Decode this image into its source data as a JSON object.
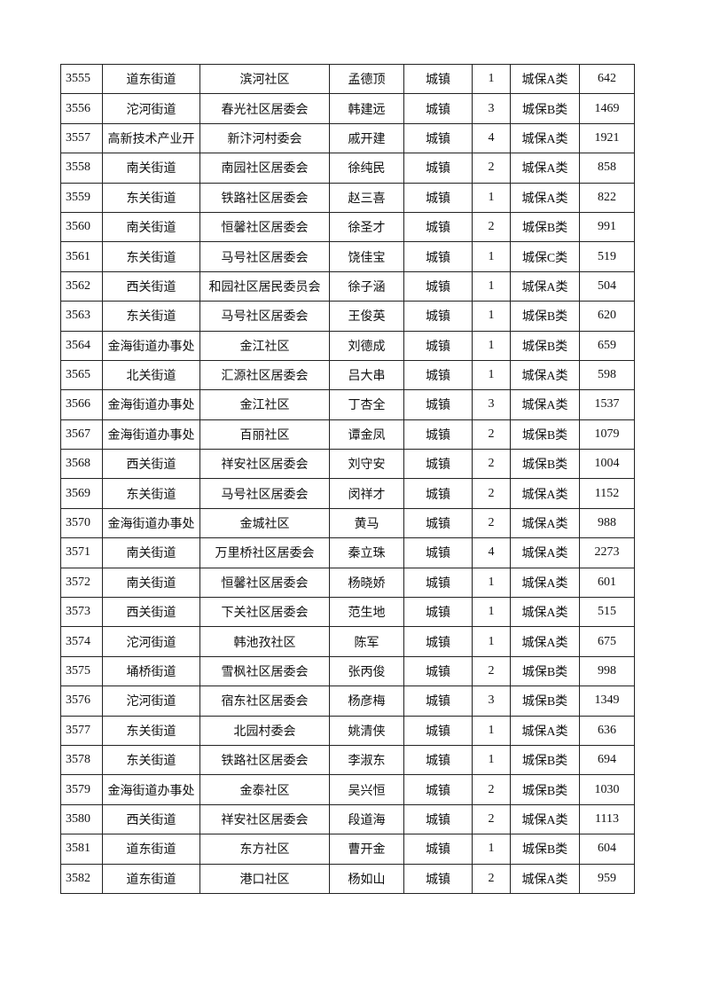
{
  "table": {
    "rows": [
      [
        "3555",
        "道东街道",
        "滨河社区",
        "孟德顶",
        "城镇",
        "1",
        "城保A类",
        "642"
      ],
      [
        "3556",
        "沱河街道",
        "春光社区居委会",
        "韩建远",
        "城镇",
        "3",
        "城保B类",
        "1469"
      ],
      [
        "3557",
        "高新技术产业开",
        "新汴河村委会",
        "戚开建",
        "城镇",
        "4",
        "城保A类",
        "1921"
      ],
      [
        "3558",
        "南关街道",
        "南园社区居委会",
        "徐纯民",
        "城镇",
        "2",
        "城保A类",
        "858"
      ],
      [
        "3559",
        "东关街道",
        "铁路社区居委会",
        "赵三喜",
        "城镇",
        "1",
        "城保A类",
        "822"
      ],
      [
        "3560",
        "南关街道",
        "恒馨社区居委会",
        "徐圣才",
        "城镇",
        "2",
        "城保B类",
        "991"
      ],
      [
        "3561",
        "东关街道",
        "马号社区居委会",
        "饶佳宝",
        "城镇",
        "1",
        "城保C类",
        "519"
      ],
      [
        "3562",
        "西关街道",
        "和园社区居民委员会",
        "徐子涵",
        "城镇",
        "1",
        "城保A类",
        "504"
      ],
      [
        "3563",
        "东关街道",
        "马号社区居委会",
        "王俊英",
        "城镇",
        "1",
        "城保B类",
        "620"
      ],
      [
        "3564",
        "金海街道办事处",
        "金江社区",
        "刘德成",
        "城镇",
        "1",
        "城保B类",
        "659"
      ],
      [
        "3565",
        "北关街道",
        "汇源社区居委会",
        "吕大串",
        "城镇",
        "1",
        "城保A类",
        "598"
      ],
      [
        "3566",
        "金海街道办事处",
        "金江社区",
        "丁杏全",
        "城镇",
        "3",
        "城保A类",
        "1537"
      ],
      [
        "3567",
        "金海街道办事处",
        "百丽社区",
        "谭金凤",
        "城镇",
        "2",
        "城保B类",
        "1079"
      ],
      [
        "3568",
        "西关街道",
        "祥安社区居委会",
        "刘守安",
        "城镇",
        "2",
        "城保B类",
        "1004"
      ],
      [
        "3569",
        "东关街道",
        "马号社区居委会",
        "闵祥才",
        "城镇",
        "2",
        "城保A类",
        "1152"
      ],
      [
        "3570",
        "金海街道办事处",
        "金城社区",
        "黄马",
        "城镇",
        "2",
        "城保A类",
        "988"
      ],
      [
        "3571",
        "南关街道",
        "万里桥社区居委会",
        "秦立珠",
        "城镇",
        "4",
        "城保A类",
        "2273"
      ],
      [
        "3572",
        "南关街道",
        "恒馨社区居委会",
        "杨晓娇",
        "城镇",
        "1",
        "城保A类",
        "601"
      ],
      [
        "3573",
        "西关街道",
        "下关社区居委会",
        "范生地",
        "城镇",
        "1",
        "城保A类",
        "515"
      ],
      [
        "3574",
        "沱河街道",
        "韩池孜社区",
        "陈军",
        "城镇",
        "1",
        "城保A类",
        "675"
      ],
      [
        "3575",
        "埇桥街道",
        "雪枫社区居委会",
        "张丙俊",
        "城镇",
        "2",
        "城保B类",
        "998"
      ],
      [
        "3576",
        "沱河街道",
        "宿东社区居委会",
        "杨彦梅",
        "城镇",
        "3",
        "城保B类",
        "1349"
      ],
      [
        "3577",
        "东关街道",
        "北园村委会",
        "姚清侠",
        "城镇",
        "1",
        "城保A类",
        "636"
      ],
      [
        "3578",
        "东关街道",
        "铁路社区居委会",
        "李淑东",
        "城镇",
        "1",
        "城保B类",
        "694"
      ],
      [
        "3579",
        "金海街道办事处",
        "金泰社区",
        "吴兴恒",
        "城镇",
        "2",
        "城保B类",
        "1030"
      ],
      [
        "3580",
        "西关街道",
        "祥安社区居委会",
        "段道海",
        "城镇",
        "2",
        "城保A类",
        "1113"
      ],
      [
        "3581",
        "道东街道",
        "东方社区",
        "曹开金",
        "城镇",
        "1",
        "城保B类",
        "604"
      ],
      [
        "3582",
        "道东街道",
        "港口社区",
        "杨如山",
        "城镇",
        "2",
        "城保A类",
        "959"
      ]
    ]
  }
}
